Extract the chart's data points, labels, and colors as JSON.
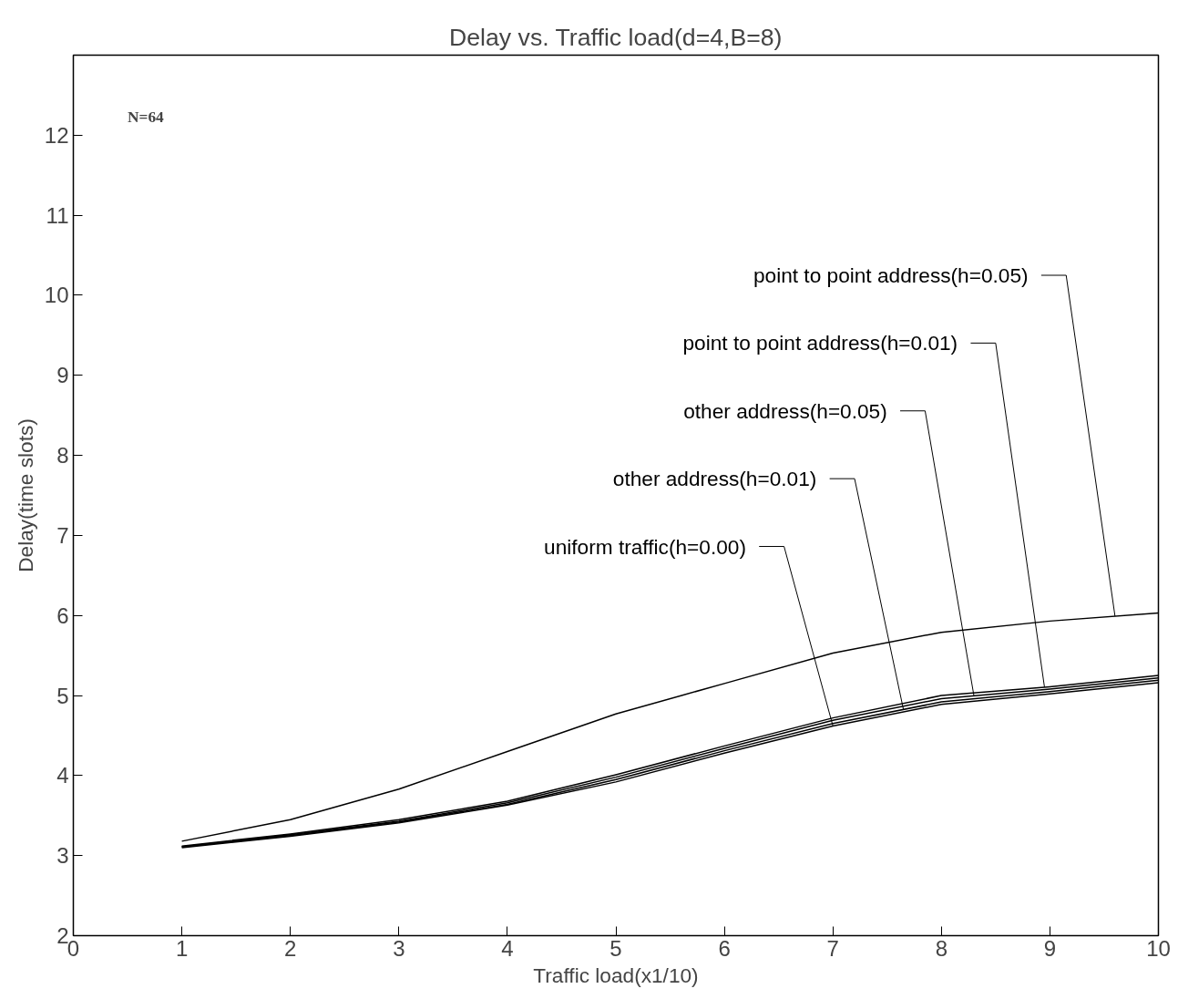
{
  "chart_data": {
    "type": "line",
    "title": "Delay vs. Traffic load(d=4,B=8)",
    "xlabel": "Traffic load(x1/10)",
    "ylabel": "Delay(time slots)",
    "x": [
      1,
      2,
      3,
      4,
      5,
      6,
      7,
      8,
      9,
      10
    ],
    "series": [
      {
        "name": "point to point address(h=0.05)",
        "color": "#000000",
        "values": [
          3.18,
          3.45,
          3.83,
          4.3,
          4.77,
          5.15,
          5.53,
          5.79,
          5.93,
          6.03
        ]
      },
      {
        "name": "point to point address(h=0.01)",
        "color": "#000000",
        "values": [
          3.12,
          3.27,
          3.45,
          3.68,
          4.01,
          4.37,
          4.72,
          5.0,
          5.11,
          5.25
        ]
      },
      {
        "name": "other address(h=0.05)",
        "color": "#000000",
        "values": [
          3.11,
          3.26,
          3.43,
          3.66,
          3.98,
          4.34,
          4.69,
          4.96,
          5.08,
          5.22
        ]
      },
      {
        "name": "other address(h=0.01)",
        "color": "#000000",
        "values": [
          3.11,
          3.25,
          3.42,
          3.64,
          3.95,
          4.31,
          4.65,
          4.92,
          5.05,
          5.19
        ]
      },
      {
        "name": "uniform traffic(h=0.00)",
        "color": "#000000",
        "values": [
          3.1,
          3.24,
          3.41,
          3.63,
          3.92,
          4.28,
          4.62,
          4.89,
          5.02,
          5.16
        ]
      }
    ],
    "annotations": [
      "N=64"
    ],
    "xlim": [
      0,
      10
    ],
    "ylim": [
      2,
      13
    ],
    "xticks": [
      0,
      1,
      2,
      3,
      4,
      5,
      6,
      7,
      8,
      9,
      10
    ],
    "yticks": [
      2,
      3,
      4,
      5,
      6,
      7,
      8,
      9,
      10,
      11,
      12
    ],
    "grid": false,
    "legend": false,
    "marker": "none",
    "line_style": "solid"
  }
}
